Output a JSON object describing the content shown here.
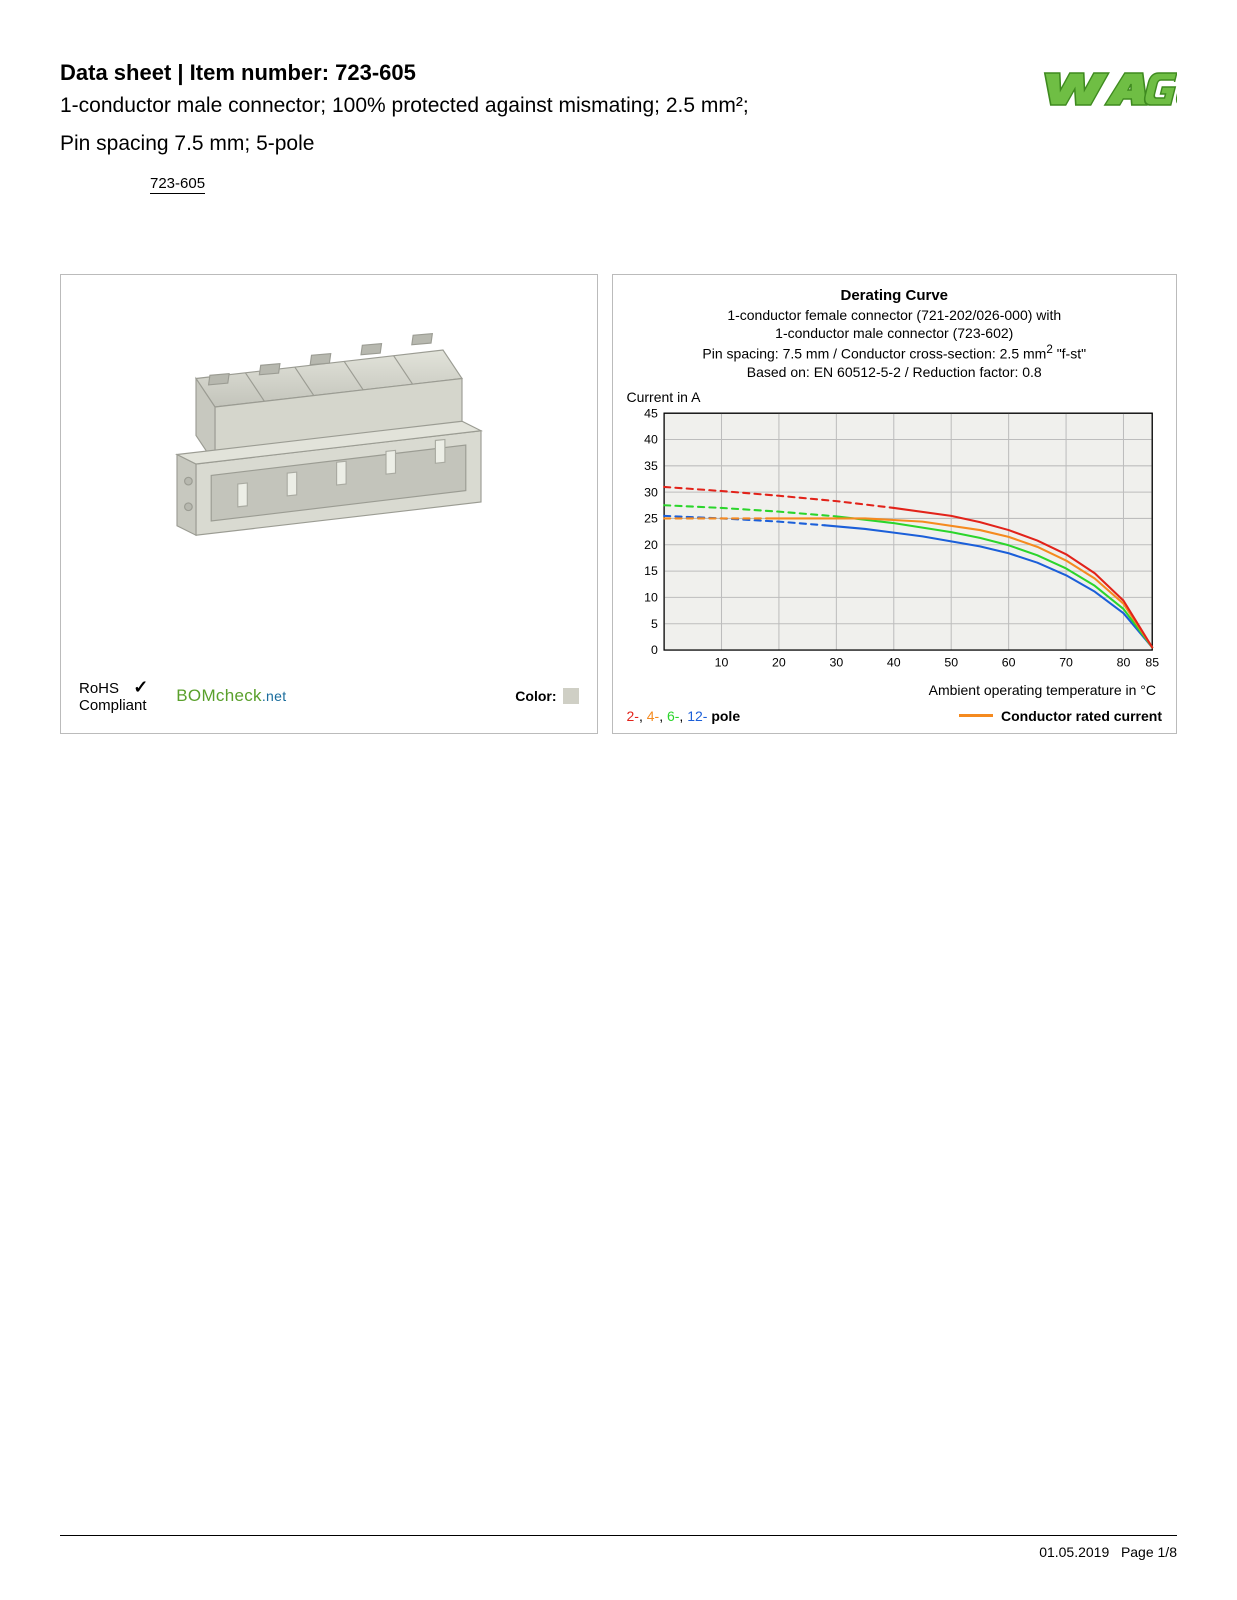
{
  "header": {
    "title_prefix": "Data sheet",
    "title_sep": "  |  ",
    "title_item_label": "Item number: ",
    "item_number": "723-605",
    "subtitle_l1": "1-conductor male connector; 100% protected against mismating; 2.5 mm²;",
    "subtitle_l2": "Pin spacing 7.5 mm; 5-pole",
    "link_text": "723-605"
  },
  "logo": {
    "text": "WAGO",
    "fill": "#6fbe44",
    "stroke": "#3e8a1f"
  },
  "product": {
    "body_fill": "#d5d6cc",
    "body_stroke": "#9b9c93",
    "rohs_l1": "RoHS",
    "rohs_l2": "Compliant",
    "check": "✓",
    "bomcheck_main": "BOMcheck",
    "bomcheck_net": ".net",
    "color_label": "Color:",
    "color_swatch": "#cfcfc5"
  },
  "chart": {
    "title": "Derating Curve",
    "sub1": "1-conductor female connector (721-202/026-000) with",
    "sub2": "1-conductor male connector (723-602)",
    "sub3_pre": "Pin spacing: 7.5 mm / Conductor cross-section: 2.5 mm",
    "sub3_sup": "2",
    "sub3_post": " \"f-st\"",
    "sub4": "Based on: EN 60512-5-2 / Reduction factor: 0.8",
    "y_label": "Current in A",
    "x_label": "Ambient operating temperature in °C",
    "ylim": [
      0,
      45
    ],
    "y_ticks": [
      0,
      5,
      10,
      15,
      20,
      25,
      30,
      35,
      40,
      45
    ],
    "xlim": [
      0,
      85
    ],
    "x_ticks": [
      10,
      20,
      30,
      40,
      50,
      60,
      70,
      80,
      85
    ],
    "grid_color": "#bdbdbd",
    "plot_bg": "#f0f0ed",
    "colors": {
      "red": "#e2231a",
      "orange": "#f58a1f",
      "green": "#2bd52b",
      "blue": "#1b5fd9"
    },
    "series": {
      "red_dash": [
        [
          0,
          31
        ],
        [
          10,
          30.2
        ],
        [
          20,
          29.3
        ],
        [
          30,
          28.3
        ],
        [
          40,
          27
        ]
      ],
      "red_solid": [
        [
          40,
          27
        ],
        [
          50,
          25.5
        ],
        [
          55,
          24.3
        ],
        [
          60,
          22.8
        ],
        [
          65,
          20.8
        ],
        [
          70,
          18.2
        ],
        [
          75,
          14.6
        ],
        [
          80,
          9.4
        ],
        [
          85,
          0.5
        ]
      ],
      "orange_dash": [
        [
          0,
          25
        ],
        [
          18,
          25
        ]
      ],
      "orange_solid": [
        [
          18,
          25
        ],
        [
          35,
          25
        ],
        [
          45,
          24.4
        ],
        [
          55,
          22.8
        ],
        [
          60,
          21.5
        ],
        [
          65,
          19.6
        ],
        [
          70,
          17
        ],
        [
          75,
          13.6
        ],
        [
          80,
          8.8
        ],
        [
          85,
          0.5
        ]
      ],
      "green_dash": [
        [
          0,
          27.5
        ],
        [
          10,
          27
        ],
        [
          20,
          26.3
        ],
        [
          30,
          25.4
        ]
      ],
      "green_solid": [
        [
          30,
          25.4
        ],
        [
          40,
          24.1
        ],
        [
          50,
          22.4
        ],
        [
          55,
          21.3
        ],
        [
          60,
          19.9
        ],
        [
          65,
          18
        ],
        [
          70,
          15.5
        ],
        [
          75,
          12.2
        ],
        [
          80,
          7.8
        ],
        [
          85,
          0.5
        ]
      ],
      "blue_dash": [
        [
          0,
          25.5
        ],
        [
          10,
          25
        ],
        [
          20,
          24.4
        ],
        [
          28,
          23.7
        ]
      ],
      "blue_solid": [
        [
          28,
          23.7
        ],
        [
          35,
          23
        ],
        [
          45,
          21.6
        ],
        [
          55,
          19.7
        ],
        [
          60,
          18.4
        ],
        [
          65,
          16.6
        ],
        [
          70,
          14.2
        ],
        [
          75,
          11.1
        ],
        [
          80,
          7
        ],
        [
          85,
          0.5
        ]
      ]
    },
    "legend": {
      "pole_prefix_2": "2-",
      "pole_prefix_4": "4-",
      "pole_prefix_6": "6-",
      "pole_prefix_12": "12-",
      "pole_suffix": " pole",
      "sep": ", ",
      "conductor": "Conductor rated current"
    }
  },
  "footer": {
    "date": "01.05.2019",
    "page": "Page 1/8"
  }
}
